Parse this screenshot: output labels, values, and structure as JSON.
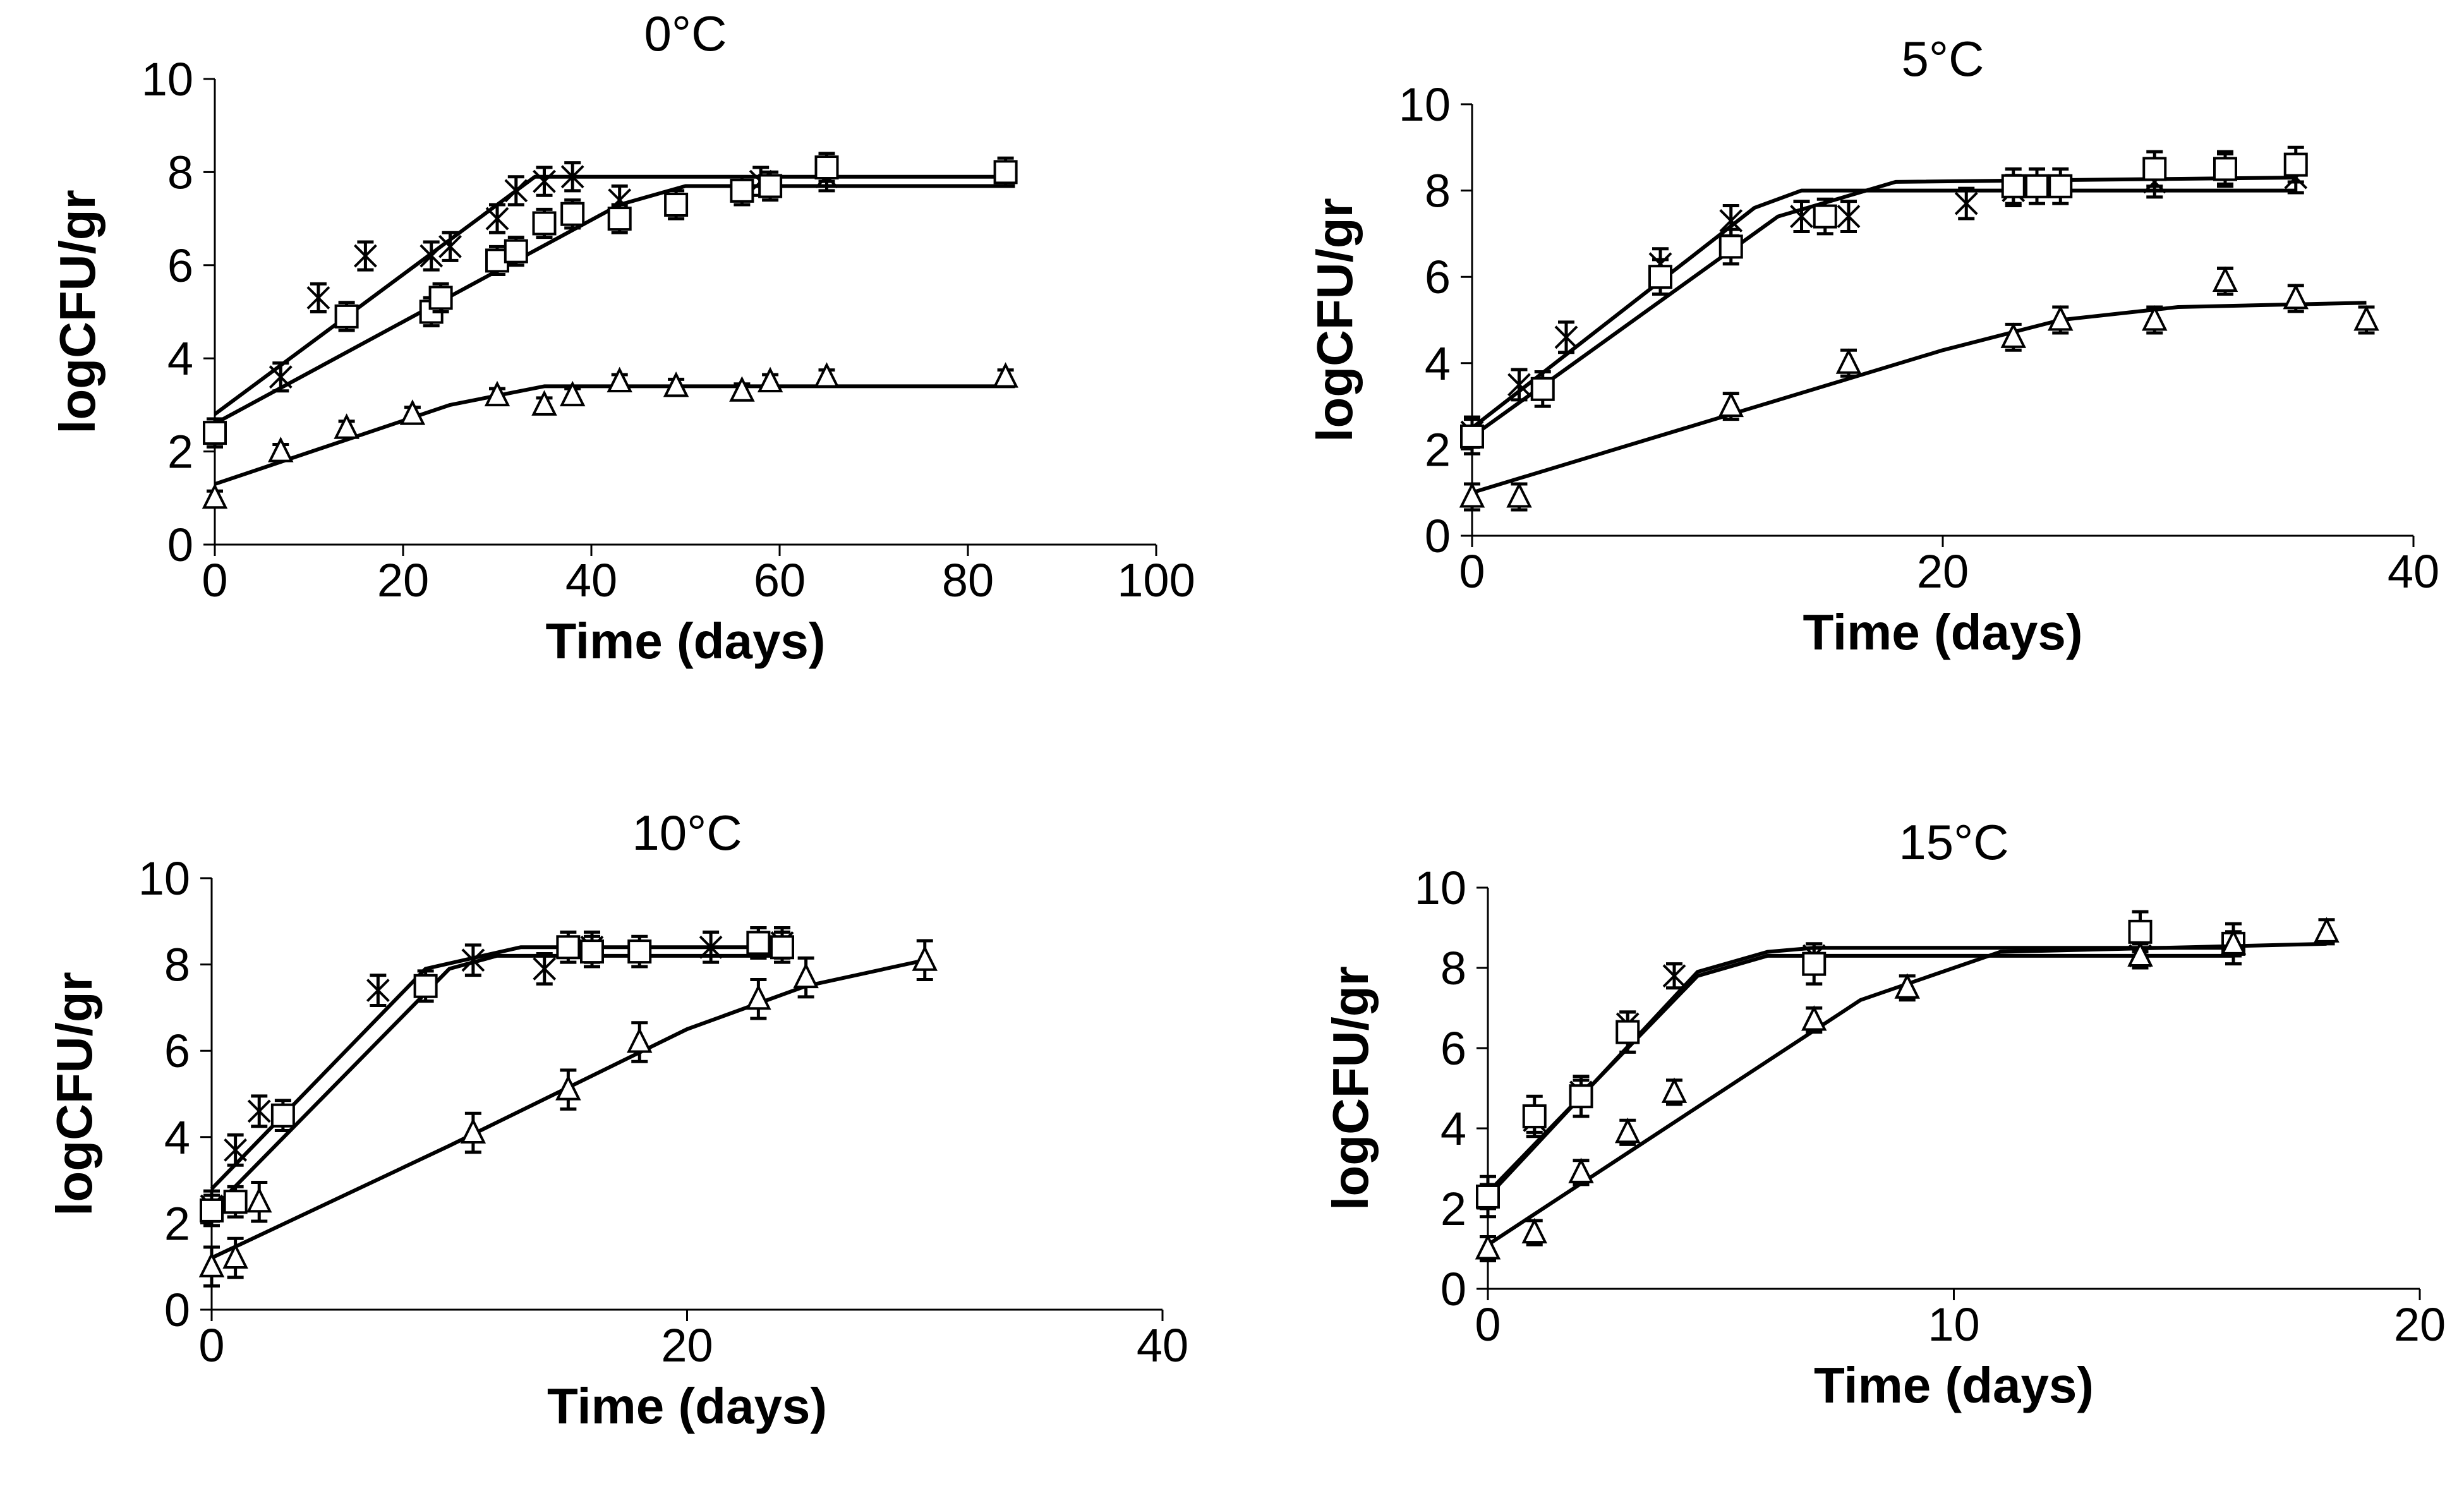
{
  "chart_data": [
    {
      "type": "scatter",
      "title": "0°C",
      "xlabel": "Time (days)",
      "ylabel": "logCFU/gr",
      "xlim": [
        0,
        100
      ],
      "ylim": [
        0,
        10
      ],
      "xticks": [
        "0",
        "20",
        "40",
        "60",
        "80",
        "100"
      ],
      "yticks": [
        "0",
        "2",
        "4",
        "6",
        "8",
        "10"
      ],
      "grid": false,
      "legend": "none",
      "series": [
        {
          "marker": "x",
          "points": [
            [
              0,
              2.4
            ],
            [
              7,
              3.6
            ],
            [
              11,
              5.3
            ],
            [
              16,
              6.2
            ],
            [
              23,
              6.2
            ],
            [
              25,
              6.4
            ],
            [
              30,
              7.0
            ],
            [
              32,
              7.6
            ],
            [
              35,
              7.8
            ],
            [
              38,
              7.9
            ],
            [
              43,
              7.4
            ],
            [
              58,
              7.8
            ],
            [
              65,
              7.9
            ]
          ],
          "error": 0.3,
          "fit": [
            [
              0,
              2.8
            ],
            [
              30,
              7.3
            ],
            [
              34,
              7.9
            ],
            [
              85,
              7.9
            ]
          ]
        },
        {
          "marker": "square",
          "points": [
            [
              0,
              2.4
            ],
            [
              14,
              4.9
            ],
            [
              23,
              5.0
            ],
            [
              24,
              5.3
            ],
            [
              30,
              6.1
            ],
            [
              32,
              6.3
            ],
            [
              35,
              6.9
            ],
            [
              38,
              7.1
            ],
            [
              43,
              7.0
            ],
            [
              49,
              7.3
            ],
            [
              56,
              7.6
            ],
            [
              59,
              7.7
            ],
            [
              65,
              8.1
            ],
            [
              84,
              8.0
            ]
          ],
          "error": 0.3,
          "fit": [
            [
              0,
              2.6
            ],
            [
              43,
              7.3
            ],
            [
              50,
              7.7
            ],
            [
              85,
              7.7
            ]
          ]
        },
        {
          "marker": "triangle",
          "points": [
            [
              0,
              1.0
            ],
            [
              7,
              2.0
            ],
            [
              14,
              2.5
            ],
            [
              21,
              2.8
            ],
            [
              30,
              3.2
            ],
            [
              35,
              3.0
            ],
            [
              38,
              3.2
            ],
            [
              43,
              3.5
            ],
            [
              49,
              3.4
            ],
            [
              56,
              3.3
            ],
            [
              59,
              3.5
            ],
            [
              65,
              3.6
            ],
            [
              84,
              3.6
            ]
          ],
          "error": 0.15,
          "fit": [
            [
              0,
              1.3
            ],
            [
              25,
              3.0
            ],
            [
              35,
              3.4
            ],
            [
              85,
              3.4
            ]
          ]
        }
      ]
    },
    {
      "type": "scatter",
      "title": "5°C",
      "xlabel": "Time (days)",
      "ylabel": "logCFU/gr",
      "xlim": [
        0,
        40
      ],
      "ylim": [
        0,
        10
      ],
      "xticks": [
        "0",
        "20",
        "40"
      ],
      "yticks": [
        "0",
        "2",
        "4",
        "6",
        "8",
        "10"
      ],
      "grid": false,
      "legend": "none",
      "series": [
        {
          "marker": "x",
          "points": [
            [
              0,
              2.4
            ],
            [
              2,
              3.5
            ],
            [
              4,
              4.6
            ],
            [
              8,
              6.3
            ],
            [
              11,
              7.3
            ],
            [
              14,
              7.4
            ],
            [
              16,
              7.4
            ],
            [
              21,
              7.7
            ],
            [
              23,
              8.0
            ],
            [
              29,
              8.2
            ],
            [
              32,
              8.5
            ],
            [
              35,
              8.3
            ]
          ],
          "error": 0.35,
          "fit": [
            [
              0,
              2.5
            ],
            [
              12,
              7.6
            ],
            [
              14,
              8.0
            ],
            [
              35,
              8.0
            ]
          ]
        },
        {
          "marker": "square",
          "points": [
            [
              0,
              2.3
            ],
            [
              3,
              3.4
            ],
            [
              8,
              6.0
            ],
            [
              11,
              6.7
            ],
            [
              15,
              7.4
            ],
            [
              23,
              8.1
            ],
            [
              24,
              8.1
            ],
            [
              25,
              8.1
            ],
            [
              29,
              8.5
            ],
            [
              32,
              8.5
            ],
            [
              35,
              8.6
            ]
          ],
          "error": 0.4,
          "fit": [
            [
              0,
              2.3
            ],
            [
              13,
              7.4
            ],
            [
              18,
              8.2
            ],
            [
              35,
              8.3
            ]
          ]
        },
        {
          "marker": "triangle",
          "points": [
            [
              0,
              0.9
            ],
            [
              2,
              0.9
            ],
            [
              11,
              3.0
            ],
            [
              16,
              4.0
            ],
            [
              23,
              4.6
            ],
            [
              25,
              5.0
            ],
            [
              29,
              5.0
            ],
            [
              32,
              5.9
            ],
            [
              35,
              5.5
            ],
            [
              38,
              5.0
            ]
          ],
          "error": 0.3,
          "fit": [
            [
              0,
              1.0
            ],
            [
              20,
              4.3
            ],
            [
              25,
              5.0
            ],
            [
              30,
              5.3
            ],
            [
              38,
              5.4
            ]
          ]
        }
      ]
    },
    {
      "type": "scatter",
      "title": "10°C",
      "xlabel": "Time (days)",
      "ylabel": "logCFU/gr",
      "xlim": [
        0,
        40
      ],
      "ylim": [
        0,
        10
      ],
      "xticks": [
        "0",
        "20",
        "40"
      ],
      "yticks": [
        "0",
        "2",
        "4",
        "6",
        "8",
        "10"
      ],
      "grid": false,
      "legend": "none",
      "series": [
        {
          "marker": "x",
          "points": [
            [
              0,
              2.4
            ],
            [
              1,
              3.7
            ],
            [
              2,
              4.6
            ],
            [
              7,
              7.4
            ],
            [
              11,
              8.1
            ],
            [
              14,
              7.9
            ],
            [
              16,
              8.4
            ],
            [
              21,
              8.4
            ],
            [
              23,
              8.5
            ],
            [
              24,
              8.5
            ]
          ],
          "error": 0.35,
          "fit": [
            [
              0,
              2.8
            ],
            [
              9,
              7.9
            ],
            [
              13,
              8.4
            ],
            [
              24,
              8.4
            ]
          ]
        },
        {
          "marker": "square",
          "points": [
            [
              0,
              2.3
            ],
            [
              1,
              2.5
            ],
            [
              3,
              4.5
            ],
            [
              9,
              7.5
            ],
            [
              15,
              8.4
            ],
            [
              16,
              8.3
            ],
            [
              18,
              8.3
            ],
            [
              23,
              8.5
            ],
            [
              24,
              8.4
            ]
          ],
          "error": 0.35,
          "fit": [
            [
              0,
              2.3
            ],
            [
              10,
              7.9
            ],
            [
              12,
              8.2
            ],
            [
              24,
              8.2
            ]
          ]
        },
        {
          "marker": "triangle",
          "points": [
            [
              0,
              1.0
            ],
            [
              1,
              1.2
            ],
            [
              2,
              2.5
            ],
            [
              11,
              4.1
            ],
            [
              15,
              5.1
            ],
            [
              18,
              6.2
            ],
            [
              23,
              7.2
            ],
            [
              25,
              7.7
            ],
            [
              30,
              8.1
            ]
          ],
          "error": 0.45,
          "fit": [
            [
              0,
              1.2
            ],
            [
              10,
              3.8
            ],
            [
              20,
              6.5
            ],
            [
              25,
              7.5
            ],
            [
              30,
              8.1
            ]
          ]
        }
      ]
    },
    {
      "type": "scatter",
      "title": "15°C",
      "xlabel": "Time (days)",
      "ylabel": "logCFU/gr",
      "xlim": [
        0,
        20
      ],
      "ylim": [
        0,
        10
      ],
      "xticks": [
        "0",
        "10",
        "20"
      ],
      "yticks": [
        "0",
        "2",
        "4",
        "6",
        "8",
        "10"
      ],
      "grid": false,
      "legend": "none",
      "series": [
        {
          "marker": "x",
          "points": [
            [
              0,
              2.3
            ],
            [
              1,
              4.2
            ],
            [
              2,
              4.9
            ],
            [
              3,
              6.6
            ],
            [
              4,
              7.8
            ],
            [
              7,
              8.3
            ],
            [
              14,
              8.3
            ],
            [
              16,
              8.6
            ]
          ],
          "error": 0.3,
          "fit": [
            [
              0,
              2.4
            ],
            [
              4.5,
              7.8
            ],
            [
              6,
              8.3
            ],
            [
              16,
              8.3
            ]
          ]
        },
        {
          "marker": "square",
          "points": [
            [
              0,
              2.3
            ],
            [
              1,
              4.3
            ],
            [
              2,
              4.8
            ],
            [
              3,
              6.4
            ],
            [
              7,
              8.1
            ],
            [
              14,
              8.9
            ],
            [
              16,
              8.6
            ]
          ],
          "error": 0.5,
          "fit": [
            [
              0,
              2.3
            ],
            [
              4.5,
              7.9
            ],
            [
              6,
              8.4
            ],
            [
              7,
              8.5
            ],
            [
              16,
              8.5
            ]
          ]
        },
        {
          "marker": "triangle",
          "points": [
            [
              0,
              1.0
            ],
            [
              1,
              1.4
            ],
            [
              2,
              2.9
            ],
            [
              3,
              3.9
            ],
            [
              4,
              4.9
            ],
            [
              7,
              6.7
            ],
            [
              9,
              7.5
            ],
            [
              14,
              8.3
            ],
            [
              16,
              8.6
            ],
            [
              18,
              8.9
            ]
          ],
          "error": 0.3,
          "fit": [
            [
              0,
              1.1
            ],
            [
              8,
              7.2
            ],
            [
              11,
              8.4
            ],
            [
              18,
              8.6
            ]
          ]
        }
      ]
    }
  ]
}
